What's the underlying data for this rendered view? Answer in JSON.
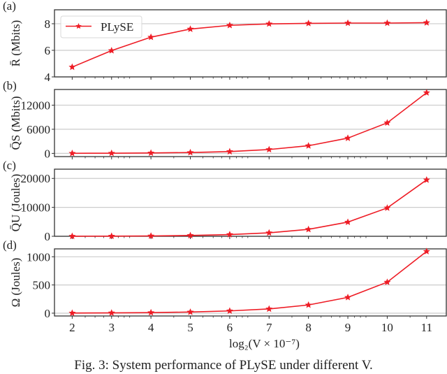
{
  "figure": {
    "caption": "Fig. 3: System performance of PLySE under different V.",
    "xlabel": "log₂(V × 10⁻⁷)",
    "legend": {
      "label": "PLySE",
      "marker": "star-icon"
    },
    "colors": {
      "series": "#ee1c25",
      "grid": "#cccccc",
      "axis": "#333333"
    }
  },
  "chart_data": [
    {
      "type": "line",
      "panel": "(a)",
      "ylabel": "R̄ (Mbits)",
      "x": [
        2,
        3,
        4,
        5,
        6,
        7,
        8,
        9,
        10,
        11
      ],
      "series": [
        {
          "name": "PLySE",
          "values": [
            4.74,
            5.98,
            6.99,
            7.6,
            7.88,
            7.99,
            8.03,
            8.05,
            8.05,
            8.08
          ]
        }
      ],
      "yticks": [
        4,
        6,
        8
      ],
      "ylim": [
        4,
        9.05
      ],
      "xlim": [
        1.55,
        11.5
      ],
      "grid": true,
      "legend_position": "upper left"
    },
    {
      "type": "line",
      "panel": "(b)",
      "ylabel": "Q̄S (Mbits)",
      "x": [
        2,
        3,
        4,
        5,
        6,
        7,
        8,
        9,
        10,
        11
      ],
      "series": [
        {
          "name": "PLySE",
          "values": [
            20,
            45,
            100,
            220,
            450,
            960,
            1900,
            3800,
            7600,
            15100
          ]
        }
      ],
      "yticks": [
        0,
        6000,
        12000
      ],
      "ylim": [
        -800,
        15900
      ],
      "xlim": [
        1.55,
        11.5
      ],
      "grid": true
    },
    {
      "type": "line",
      "panel": "(c)",
      "ylabel": "Q̄U (Joules)",
      "x": [
        2,
        3,
        4,
        5,
        6,
        7,
        8,
        9,
        10,
        11
      ],
      "series": [
        {
          "name": "PLySE",
          "values": [
            20,
            50,
            120,
            280,
            600,
            1200,
            2400,
            4900,
            9800,
            19500
          ]
        }
      ],
      "yticks": [
        0,
        10000,
        20000
      ],
      "ylim": [
        0,
        23200
      ],
      "xlim": [
        1.55,
        11.5
      ],
      "grid": true
    },
    {
      "type": "line",
      "panel": "(d)",
      "ylabel": "Ω (Joules)",
      "x": [
        2,
        3,
        4,
        5,
        6,
        7,
        8,
        9,
        10,
        11
      ],
      "series": [
        {
          "name": "PLySE",
          "values": [
            2,
            5,
            10,
            20,
            40,
            75,
            145,
            280,
            550,
            1095
          ]
        }
      ],
      "yticks": [
        0,
        500,
        1000
      ],
      "ylim": [
        -50,
        1140
      ],
      "xlim": [
        1.55,
        11.5
      ],
      "grid": true
    }
  ]
}
